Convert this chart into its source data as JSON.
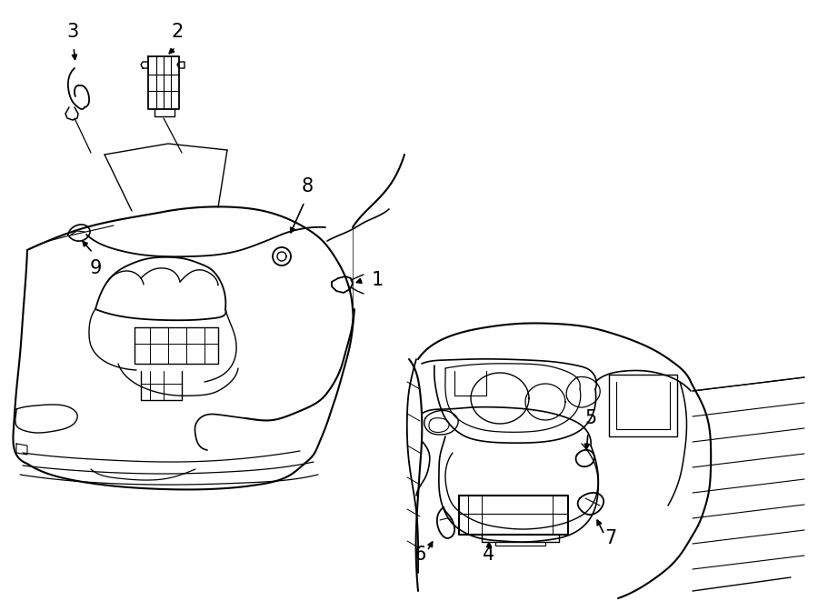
{
  "bg_color": "#ffffff",
  "line_color": "#000000",
  "lw_main": 1.4,
  "lw_thin": 0.8,
  "label_fontsize": 15
}
